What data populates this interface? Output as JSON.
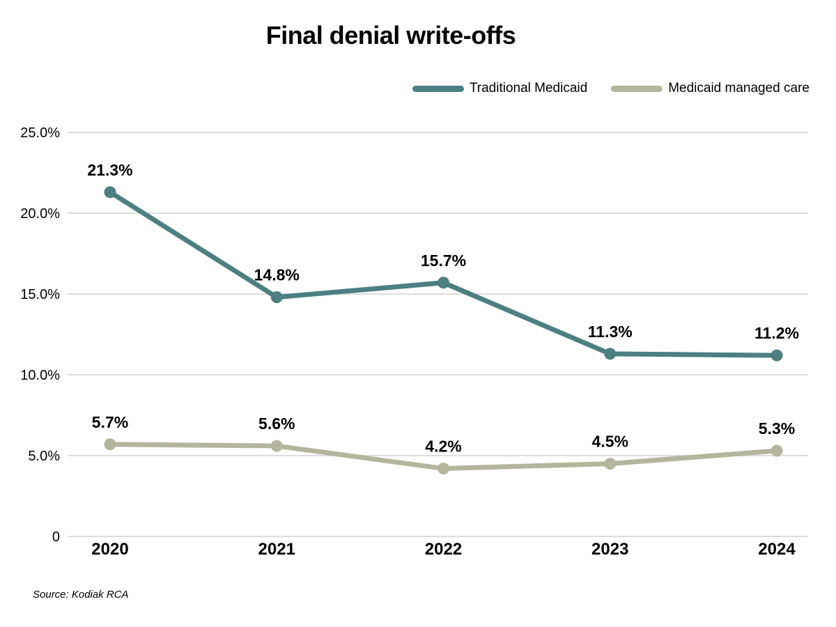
{
  "title": "Final denial write-offs",
  "source_note": "Source: Kodiak RCA",
  "colors": {
    "traditional_medicaid": "#4d7f80",
    "medicaid_managed_care": "#b3b69c",
    "gridline": "#dcdcdc",
    "label_text": "#000000",
    "background": "#ffffff"
  },
  "legend": {
    "items": [
      {
        "label": "Traditional Medicaid",
        "color": "#4d7f80"
      },
      {
        "label": "Medicaid managed care",
        "color": "#b3b69c"
      }
    ]
  },
  "chart_data": {
    "type": "line",
    "title": "Final denial write-offs",
    "x": [
      "2020",
      "2021",
      "2022",
      "2023",
      "2024"
    ],
    "series": [
      {
        "name": "Traditional Medicaid",
        "color": "#4d7f80",
        "values": [
          21.3,
          14.8,
          15.7,
          11.3,
          11.2
        ],
        "point_labels": [
          "21.3%",
          "14.8%",
          "15.7%",
          "11.3%",
          "11.2%"
        ]
      },
      {
        "name": "Medicaid managed care",
        "color": "#b3b69c",
        "values": [
          5.7,
          5.6,
          4.2,
          4.5,
          5.3
        ],
        "point_labels": [
          "5.7%",
          "5.6%",
          "4.2%",
          "4.5%",
          "5.3%"
        ]
      }
    ],
    "xlabel": "",
    "ylabel": "",
    "ylim": [
      0,
      25
    ],
    "yticks": [
      {
        "value": 25,
        "label": "25.0%"
      },
      {
        "value": 20,
        "label": "20.0%"
      },
      {
        "value": 15,
        "label": "15.0%"
      },
      {
        "value": 10,
        "label": "10.0%"
      },
      {
        "value": 5,
        "label": "5.0%"
      },
      {
        "value": 0,
        "label": "0"
      }
    ],
    "grid": true,
    "legend_position": "top-right",
    "data_labels": true
  }
}
